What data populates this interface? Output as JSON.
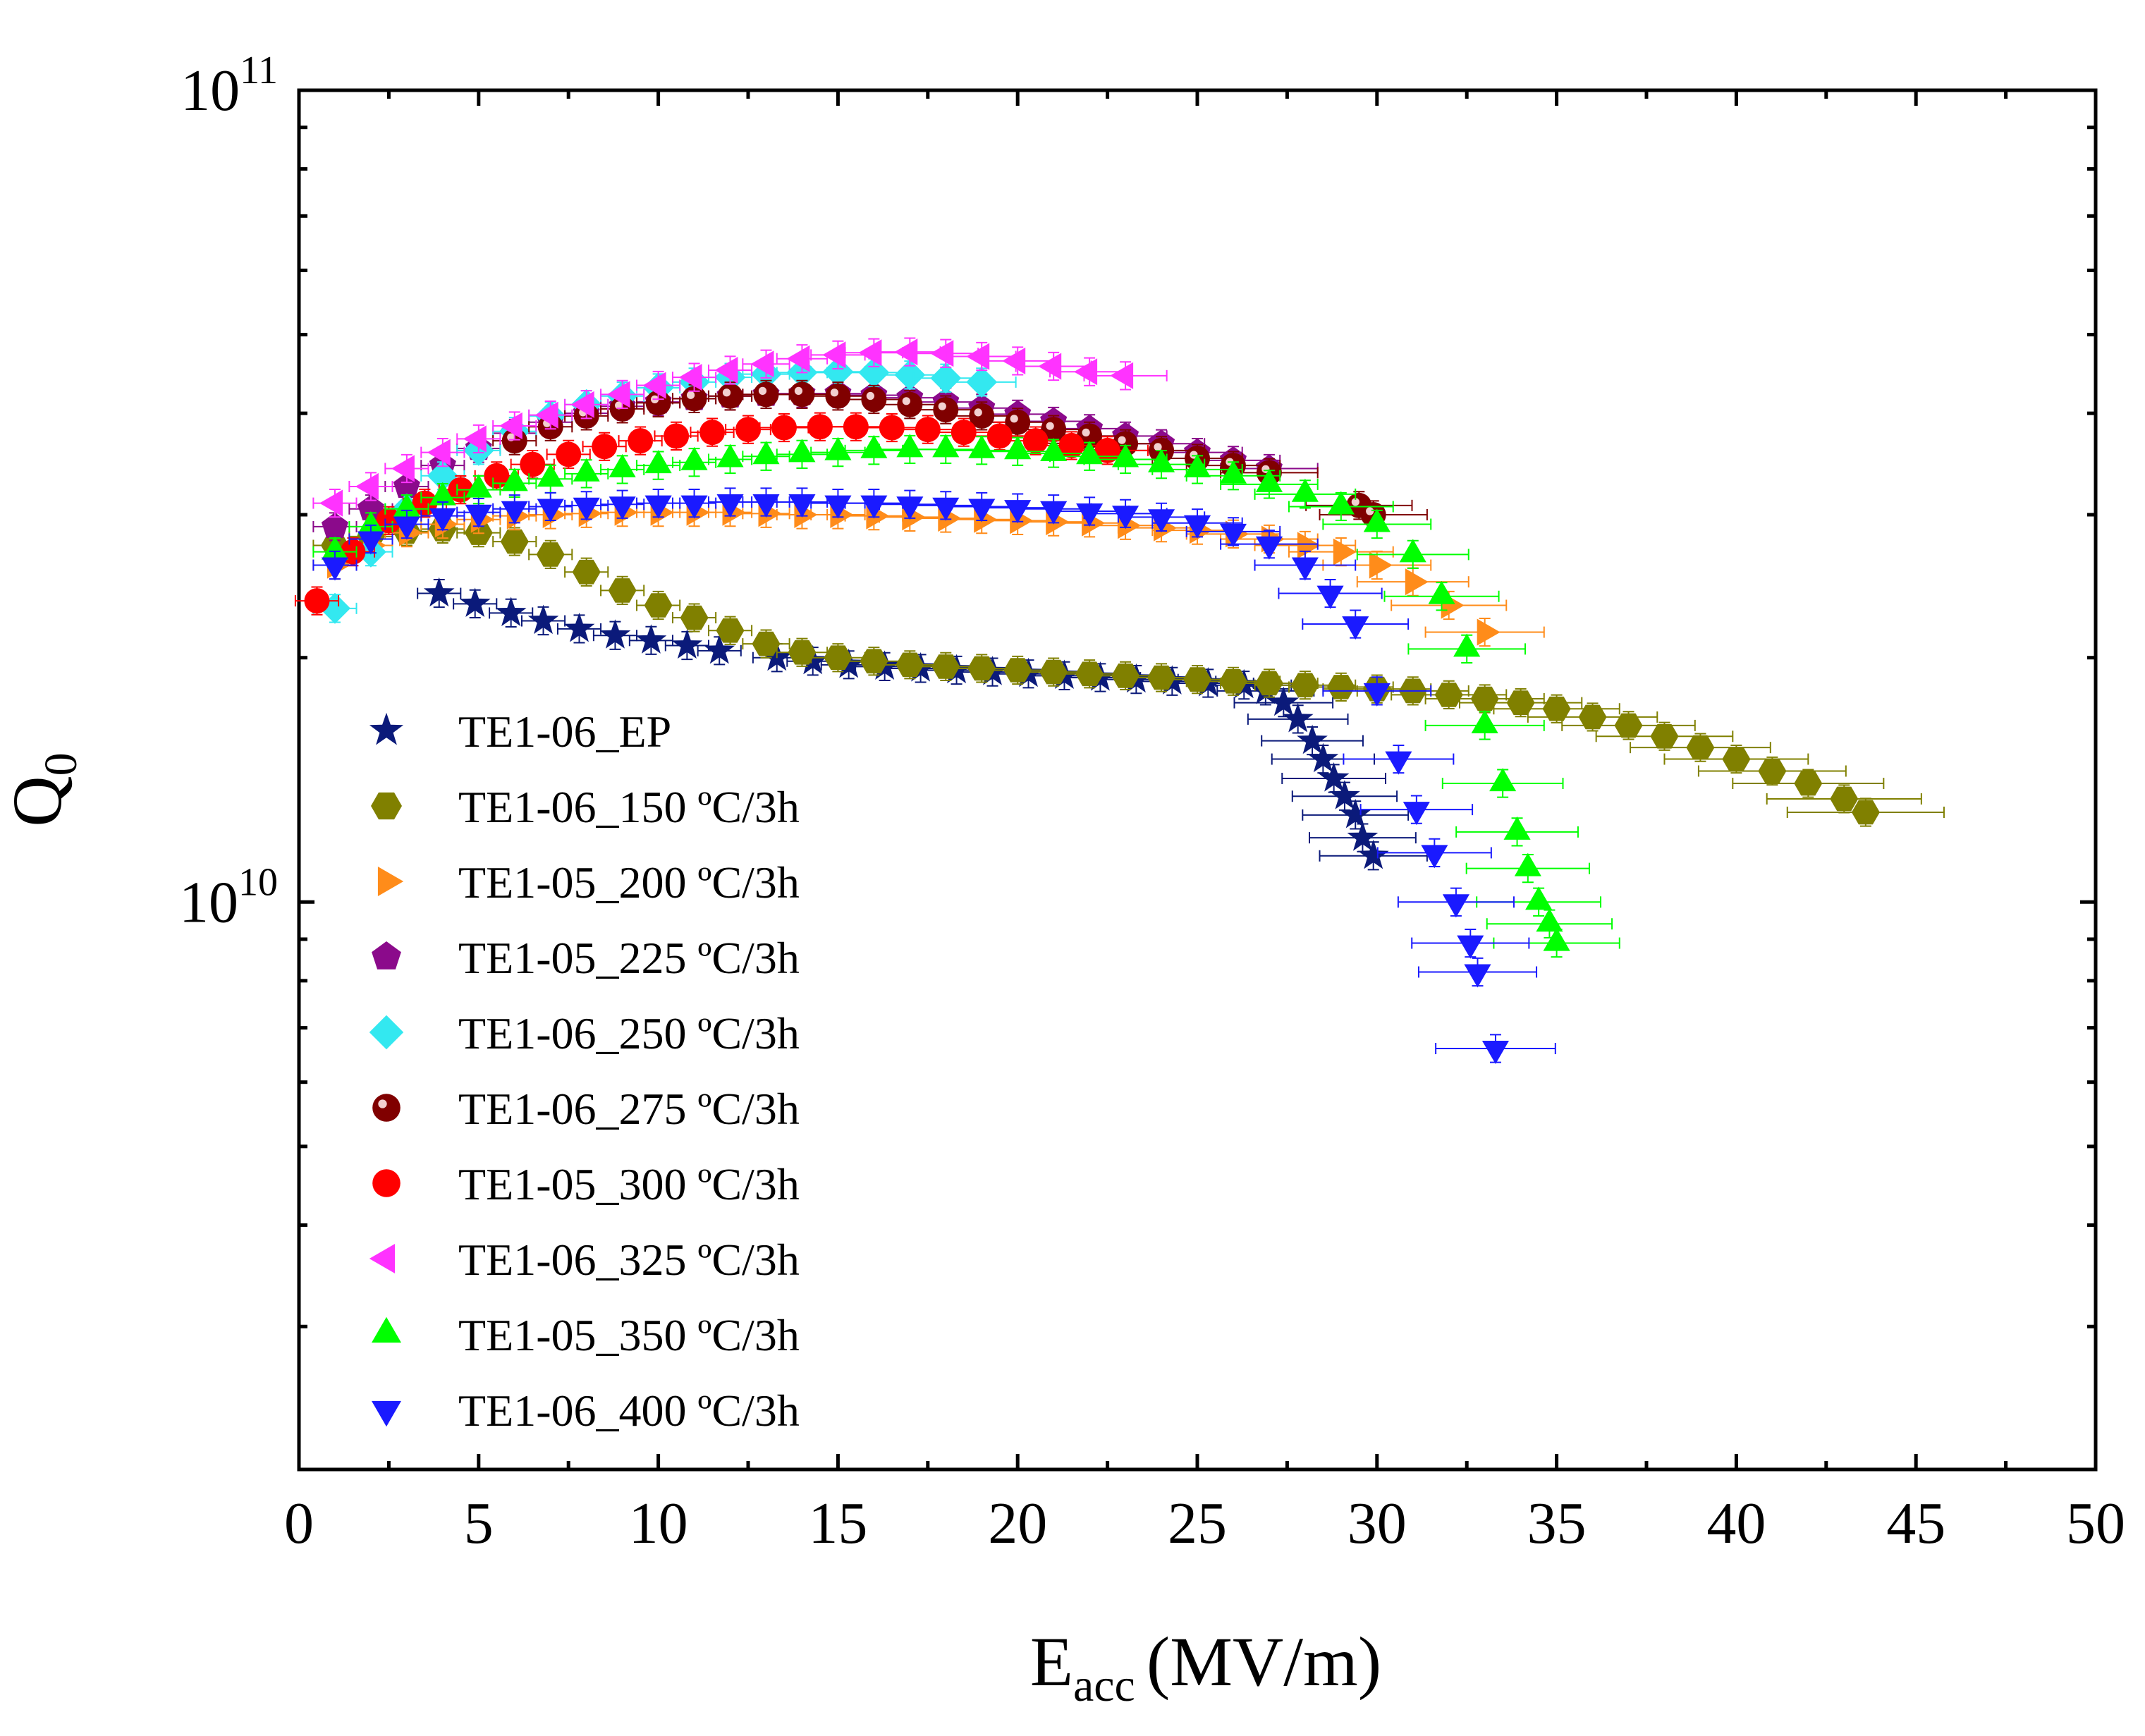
{
  "chart_data": {
    "type": "scatter",
    "title": "",
    "xlabel": "E",
    "xlabel_sub": "acc",
    "xlabel_unit": "(MV/m)",
    "ylabel": "Q",
    "ylabel_sub": "0",
    "xlim": [
      0,
      50
    ],
    "ylim": [
      2000000000.0,
      100000000000.0
    ],
    "yscale": "log",
    "grid": false,
    "legend_position": "bottom-left",
    "x_ticks": [
      "0",
      "5",
      "10",
      "15",
      "20",
      "25",
      "30",
      "35",
      "40",
      "45",
      "50"
    ],
    "y_ticks": [
      {
        "value": 10000000000.0,
        "base": "10",
        "exp": "10"
      },
      {
        "value": 100000000000.0,
        "base": "10",
        "exp": "11"
      }
    ],
    "series": [
      {
        "name": "TE1-06_EP",
        "color": "#0b1a7a",
        "marker": "star",
        "x": [
          3.9,
          4.9,
          5.9,
          6.8,
          7.8,
          8.8,
          9.8,
          10.8,
          11.7,
          13.3,
          14.3,
          15.3,
          16.3,
          17.3,
          18.3,
          19.3,
          20.3,
          21.3,
          22.3,
          23.3,
          24.3,
          25.3,
          26.3,
          26.9,
          27.4,
          27.8,
          28.2,
          28.5,
          28.8,
          29.1,
          29.4,
          29.6,
          29.9
        ],
        "y": [
          24000000000.0,
          23300000000.0,
          22700000000.0,
          22200000000.0,
          21700000000.0,
          21300000000.0,
          21000000000.0,
          20700000000.0,
          20400000000.0,
          20000000000.0,
          19800000000.0,
          19600000000.0,
          19500000000.0,
          19400000000.0,
          19300000000.0,
          19200000000.0,
          19100000000.0,
          19000000000.0,
          18900000000.0,
          18800000000.0,
          18700000000.0,
          18600000000.0,
          18500000000.0,
          18200000000.0,
          17600000000.0,
          16800000000.0,
          15800000000.0,
          15000000000.0,
          14200000000.0,
          13500000000.0,
          12800000000.0,
          12000000000.0,
          11400000000.0
        ]
      },
      {
        "name": "TE1-06_150 ºC/3h",
        "color": "#808000",
        "marker": "hexagon",
        "x": [
          1.0,
          2.0,
          3.0,
          4.0,
          5.0,
          6.0,
          7.0,
          8.0,
          9.0,
          10.0,
          11.0,
          12.0,
          13.0,
          14.0,
          15.0,
          16.0,
          17.0,
          18.0,
          19.0,
          20.0,
          21.0,
          22.0,
          23.0,
          24.0,
          25.0,
          26.0,
          27.0,
          28.0,
          29.0,
          30.0,
          31.0,
          32.0,
          33.0,
          34.0,
          35.0,
          36.0,
          37.0,
          38.0,
          39.0,
          40.0,
          41.0,
          42.0,
          43.0,
          43.6
        ],
        "y": [
          27500000000.0,
          28200000000.0,
          28600000000.0,
          28800000000.0,
          28500000000.0,
          27800000000.0,
          26800000000.0,
          25500000000.0,
          24200000000.0,
          23200000000.0,
          22400000000.0,
          21600000000.0,
          20800000000.0,
          20300000000.0,
          20000000000.0,
          19800000000.0,
          19600000000.0,
          19500000000.0,
          19400000000.0,
          19300000000.0,
          19200000000.0,
          19100000000.0,
          19000000000.0,
          18900000000.0,
          18800000000.0,
          18700000000.0,
          18600000000.0,
          18500000000.0,
          18400000000.0,
          18300000000.0,
          18200000000.0,
          18000000000.0,
          17800000000.0,
          17600000000.0,
          17300000000.0,
          16900000000.0,
          16500000000.0,
          16000000000.0,
          15500000000.0,
          15000000000.0,
          14500000000.0,
          14000000000.0,
          13400000000.0,
          12900000000.0
        ]
      },
      {
        "name": "TE1-05_200 ºC/3h",
        "color": "#ff8c1a",
        "marker": "triangle-right",
        "x": [
          1.0,
          2.0,
          3.0,
          4.0,
          5.0,
          6.0,
          7.0,
          8.0,
          9.0,
          10.0,
          11.0,
          12.0,
          13.0,
          14.0,
          15.0,
          16.0,
          17.0,
          18.0,
          19.0,
          20.0,
          21.0,
          22.0,
          23.0,
          24.0,
          25.0,
          26.0,
          27.0,
          28.0,
          29.0,
          30.0,
          31.0,
          32.0,
          33.0
        ],
        "y": [
          26000000000.0,
          27500000000.0,
          28500000000.0,
          29200000000.0,
          29600000000.0,
          29900000000.0,
          30000000000.0,
          30100000000.0,
          30200000000.0,
          30200000000.0,
          30200000000.0,
          30200000000.0,
          30100000000.0,
          30000000000.0,
          30000000000.0,
          29900000000.0,
          29800000000.0,
          29700000000.0,
          29600000000.0,
          29500000000.0,
          29400000000.0,
          29300000000.0,
          29100000000.0,
          28900000000.0,
          28700000000.0,
          28400000000.0,
          28000000000.0,
          27500000000.0,
          27000000000.0,
          26000000000.0,
          24800000000.0,
          23200000000.0,
          21500000000.0
        ]
      },
      {
        "name": "TE1-05_225 ºC/3h",
        "color": "#8b0a8b",
        "marker": "pentagon",
        "x": [
          1.0,
          2.0,
          3.0,
          4.0,
          5.0,
          6.0,
          7.0,
          8.0,
          9.0,
          10.0,
          11.0,
          12.0,
          13.0,
          14.0,
          15.0,
          16.0,
          17.0,
          18.0,
          19.0,
          20.0,
          21.0,
          22.0,
          23.0,
          24.0,
          25.0,
          26.0,
          27.0
        ],
        "y": [
          29000000000.0,
          30500000000.0,
          32500000000.0,
          34500000000.0,
          36200000000.0,
          37800000000.0,
          39000000000.0,
          40000000000.0,
          40800000000.0,
          41300000000.0,
          41700000000.0,
          42000000000.0,
          42200000000.0,
          42300000000.0,
          42300000000.0,
          42100000000.0,
          41800000000.0,
          41300000000.0,
          40600000000.0,
          39900000000.0,
          39100000000.0,
          38300000000.0,
          37500000000.0,
          36700000000.0,
          35800000000.0,
          35000000000.0,
          34200000000.0
        ]
      },
      {
        "name": "TE1-06_250 ºC/3h",
        "color": "#33e8f0",
        "marker": "diamond",
        "x": [
          1.0,
          2.0,
          3.0,
          4.0,
          5.0,
          6.0,
          7.0,
          8.0,
          9.0,
          10.0,
          11.0,
          12.0,
          13.0,
          14.0,
          15.0,
          16.0,
          17.0,
          18.0,
          19.0
        ],
        "y": [
          23000000000.0,
          27000000000.0,
          30500000000.0,
          33500000000.0,
          36000000000.0,
          38000000000.0,
          39700000000.0,
          41000000000.0,
          42000000000.0,
          43000000000.0,
          43700000000.0,
          44300000000.0,
          44700000000.0,
          44900000000.0,
          45000000000.0,
          44900000000.0,
          44600000000.0,
          44200000000.0,
          43700000000.0
        ]
      },
      {
        "name": "TE1-06_275 ºC/3h",
        "color": "#800000",
        "marker": "sphere",
        "x": [
          6.0,
          7.0,
          8.0,
          9.0,
          10.0,
          11.0,
          12.0,
          13.0,
          14.0,
          15.0,
          16.0,
          17.0,
          18.0,
          19.0,
          20.0,
          21.0,
          22.0,
          23.0,
          24.0,
          25.0,
          26.0,
          27.0,
          29.5,
          29.9
        ],
        "y": [
          37000000000.0,
          38500000000.0,
          39700000000.0,
          40500000000.0,
          41200000000.0,
          41700000000.0,
          42000000000.0,
          42200000000.0,
          42200000000.0,
          42000000000.0,
          41600000000.0,
          41000000000.0,
          40400000000.0,
          39700000000.0,
          39000000000.0,
          38200000000.0,
          37500000000.0,
          36700000000.0,
          36000000000.0,
          35200000000.0,
          34500000000.0,
          33800000000.0,
          30800000000.0,
          30000000000.0
        ]
      },
      {
        "name": "TE1-05_300 ºC/3h",
        "color": "#ff0000",
        "marker": "circle",
        "x": [
          0.5,
          1.5,
          2.5,
          3.5,
          4.5,
          5.5,
          6.5,
          7.5,
          8.5,
          9.5,
          10.5,
          11.5,
          12.5,
          13.5,
          14.5,
          15.5,
          16.5,
          17.5,
          18.5,
          19.5,
          20.5,
          21.5,
          22.5
        ],
        "y": [
          23500000000.0,
          27000000000.0,
          29500000000.0,
          31000000000.0,
          32200000000.0,
          33500000000.0,
          34600000000.0,
          35600000000.0,
          36400000000.0,
          37000000000.0,
          37500000000.0,
          37900000000.0,
          38200000000.0,
          38400000000.0,
          38500000000.0,
          38500000000.0,
          38400000000.0,
          38200000000.0,
          37900000000.0,
          37500000000.0,
          37000000000.0,
          36500000000.0,
          36000000000.0
        ]
      },
      {
        "name": "TE1-06_325 ºC/3h",
        "color": "#ff33ff",
        "marker": "triangle-left",
        "x": [
          1.0,
          2.0,
          3.0,
          4.0,
          5.0,
          6.0,
          7.0,
          8.0,
          9.0,
          10.0,
          11.0,
          12.0,
          13.0,
          14.0,
          15.0,
          16.0,
          17.0,
          18.0,
          19.0,
          20.0,
          21.0,
          22.0,
          23.0
        ],
        "y": [
          31000000000.0,
          32500000000.0,
          34200000000.0,
          35800000000.0,
          37200000000.0,
          38600000000.0,
          39800000000.0,
          41000000000.0,
          42200000000.0,
          43300000000.0,
          44300000000.0,
          45200000000.0,
          46000000000.0,
          46700000000.0,
          47200000000.0,
          47500000000.0,
          47600000000.0,
          47400000000.0,
          47000000000.0,
          46400000000.0,
          45700000000.0,
          45000000000.0,
          44500000000.0
        ]
      },
      {
        "name": "TE1-05_350 ºC/3h",
        "color": "#00ff00",
        "marker": "triangle-up",
        "x": [
          1.0,
          2.0,
          3.0,
          4.0,
          5.0,
          6.0,
          7.0,
          8.0,
          9.0,
          10.0,
          11.0,
          12.0,
          13.0,
          14.0,
          15.0,
          16.0,
          17.0,
          18.0,
          19.0,
          20.0,
          21.0,
          22.0,
          23.0,
          24.0,
          25.0,
          26.0,
          27.0,
          28.0,
          29.0,
          30.0,
          31.0,
          31.8,
          32.5,
          33.0,
          33.5,
          33.9,
          34.2,
          34.5,
          34.8,
          35.0
        ],
        "y": [
          27000000000.0,
          29000000000.0,
          30500000000.0,
          31500000000.0,
          32200000000.0,
          32800000000.0,
          33200000000.0,
          33700000000.0,
          34100000000.0,
          34500000000.0,
          34800000000.0,
          35100000000.0,
          35400000000.0,
          35600000000.0,
          35800000000.0,
          36000000000.0,
          36100000000.0,
          36100000000.0,
          36000000000.0,
          35900000000.0,
          35700000000.0,
          35400000000.0,
          35100000000.0,
          34600000000.0,
          34100000000.0,
          33500000000.0,
          32700000000.0,
          31800000000.0,
          30700000000.0,
          29200000000.0,
          26800000000.0,
          23800000000.0,
          20500000000.0,
          16500000000.0,
          14000000000.0,
          12200000000.0,
          11000000000.0,
          10000000000.0,
          9400000000.0,
          8900000000.0
        ]
      },
      {
        "name": "TE1-06_400 ºC/3h",
        "color": "#1a1aff",
        "marker": "triangle-down",
        "x": [
          1.0,
          2.0,
          3.0,
          4.0,
          5.0,
          6.0,
          7.0,
          8.0,
          9.0,
          10.0,
          11.0,
          12.0,
          13.0,
          14.0,
          15.0,
          16.0,
          17.0,
          18.0,
          19.0,
          20.0,
          21.0,
          22.0,
          23.0,
          24.0,
          25.0,
          26.0,
          27.0,
          28.0,
          28.7,
          29.4,
          30.0,
          30.6,
          31.1,
          31.6,
          32.2,
          32.6,
          32.8,
          33.3
        ],
        "y": [
          26000000000.0,
          28000000000.0,
          29200000000.0,
          29900000000.0,
          30200000000.0,
          30500000000.0,
          30700000000.0,
          30800000000.0,
          30900000000.0,
          31000000000.0,
          31000000000.0,
          31100000000.0,
          31100000000.0,
          31100000000.0,
          31000000000.0,
          31000000000.0,
          30900000000.0,
          30800000000.0,
          30700000000.0,
          30600000000.0,
          30500000000.0,
          30300000000.0,
          30100000000.0,
          29800000000.0,
          29300000000.0,
          28600000000.0,
          27600000000.0,
          26000000000.0,
          24000000000.0,
          22000000000.0,
          18200000000.0,
          15000000000.0,
          13000000000.0,
          11500000000.0,
          10000000000.0,
          8900000000.0,
          8200000000.0,
          6600000000.0
        ]
      }
    ]
  }
}
